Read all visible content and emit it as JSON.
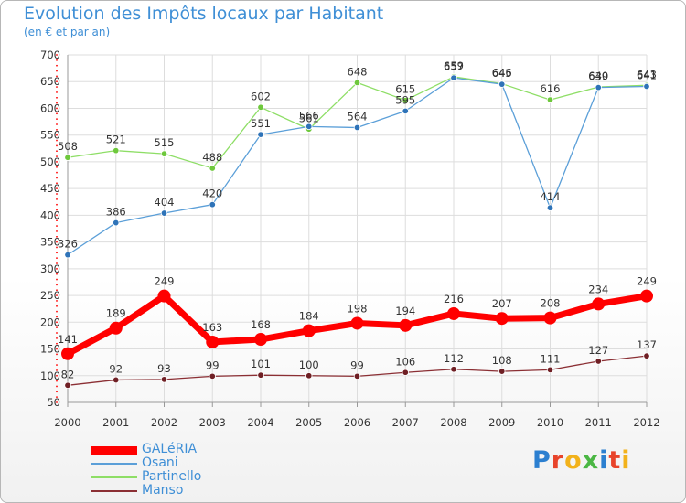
{
  "header": {
    "title": "Evolution des Impôts locaux par Habitant",
    "subtitle": "(en € et par an)"
  },
  "logo": {
    "letters": [
      "P",
      "r",
      "o",
      "x",
      "i",
      "t",
      "i"
    ],
    "colors": [
      "#2b7fd0",
      "#e8442b",
      "#f2b21b",
      "#4bb744",
      "#2b7fd0",
      "#e8442b",
      "#f2b21b"
    ]
  },
  "chart_data": {
    "type": "line",
    "x": [
      "2000",
      "2001",
      "2002",
      "2003",
      "2004",
      "2005",
      "2006",
      "2007",
      "2008",
      "2009",
      "2010",
      "2011",
      "2012"
    ],
    "ylim": [
      50,
      700
    ],
    "yticks": [
      50,
      100,
      150,
      200,
      250,
      300,
      350,
      400,
      450,
      500,
      550,
      600,
      650,
      700
    ],
    "grid": true,
    "legend_position": "bottom-left",
    "series": [
      {
        "name": "GALéRIA",
        "color": "#ff0000",
        "marker_color": "#ff0000",
        "values": [
          141,
          189,
          249,
          163,
          168,
          184,
          198,
          194,
          216,
          207,
          208,
          234,
          249
        ]
      },
      {
        "name": "Osani",
        "color": "#5b9fd8",
        "marker_color": "#2e73b8",
        "values": [
          326,
          386,
          404,
          420,
          551,
          566,
          564,
          595,
          657,
          645,
          414,
          639,
          641
        ]
      },
      {
        "name": "Partinello",
        "color": "#8ede66",
        "marker_color": "#6ec83c",
        "values": [
          508,
          521,
          515,
          488,
          602,
          561,
          648,
          615,
          659,
          646,
          616,
          640,
          643
        ]
      },
      {
        "name": "Manso",
        "color": "#8b2f34",
        "marker_color": "#6f1f24",
        "values": [
          82,
          92,
          93,
          99,
          101,
          100,
          99,
          106,
          112,
          108,
          111,
          127,
          137
        ]
      }
    ]
  }
}
